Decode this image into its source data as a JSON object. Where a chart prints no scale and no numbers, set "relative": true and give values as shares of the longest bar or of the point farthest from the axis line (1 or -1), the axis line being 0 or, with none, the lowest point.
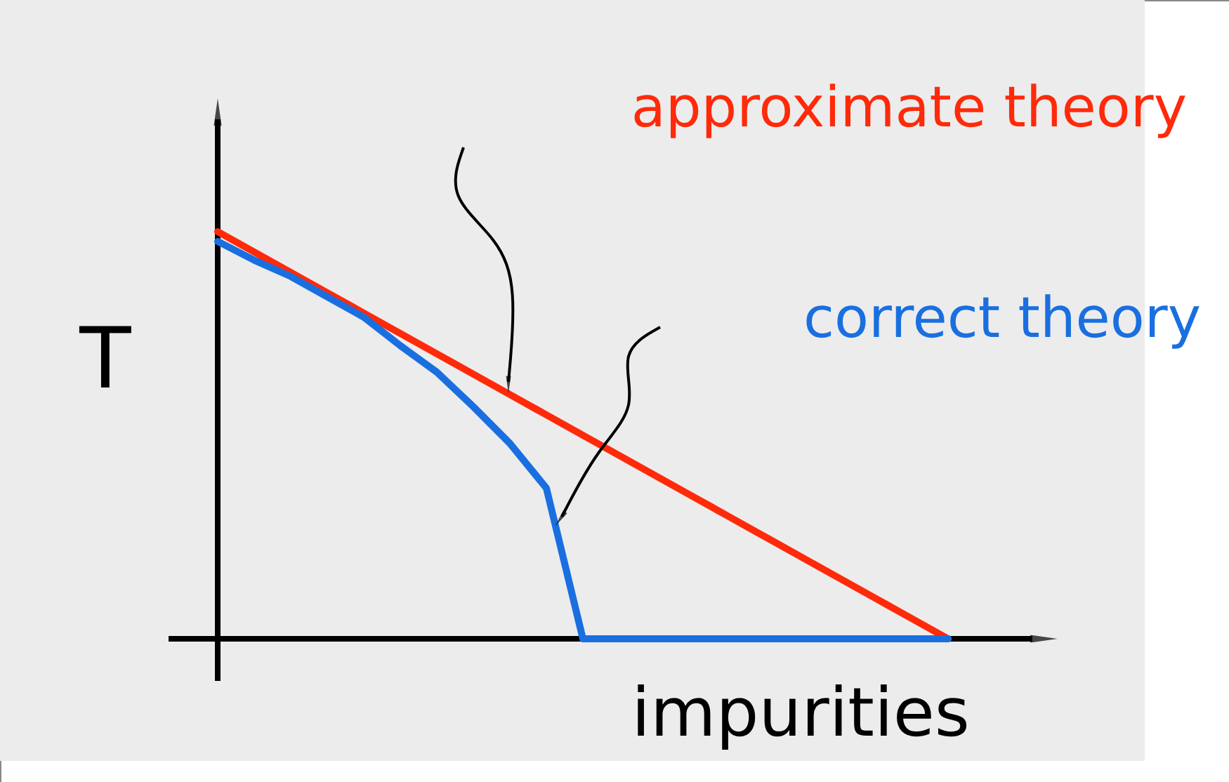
{
  "chart_data": {
    "type": "line",
    "relative": true,
    "xlabel": "impurities",
    "ylabel": "T",
    "categories": [
      null,
      null,
      null,
      null,
      null,
      null,
      null,
      null,
      null,
      null,
      null,
      null,
      null,
      null,
      null,
      null,
      null,
      null,
      null,
      null,
      null
    ],
    "series": [
      {
        "name": "approximate theory",
        "color": "#ff2a0a",
        "values": [
          1,
          0.95,
          0.9,
          0.85,
          0.8,
          0.75,
          0.7,
          0.65,
          0.6,
          0.55,
          0.5,
          0.45,
          0.4,
          0.35,
          0.3,
          0.25,
          0.2,
          0.15,
          0.1,
          0.05,
          0
        ]
      },
      {
        "name": "correct theory",
        "color": "#1a6fe0",
        "values": [
          0.976,
          0.93,
          0.89,
          0.84,
          0.79,
          0.72,
          0.655,
          0.57,
          0.48,
          0.37,
          0,
          0,
          0,
          0,
          0,
          0,
          0,
          0,
          0,
          0,
          0
        ]
      }
    ]
  }
}
